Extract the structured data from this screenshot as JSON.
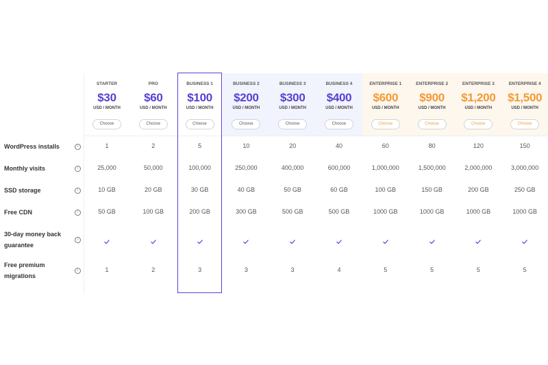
{
  "plans": [
    {
      "name": "STARTER",
      "price": "$30",
      "period": "USD / MONTH",
      "button": "Choose",
      "color": "#5a3fd1",
      "background": "#ffffff"
    },
    {
      "name": "PRO",
      "price": "$60",
      "period": "USD / MONTH",
      "button": "Choose",
      "color": "#5a3fd1",
      "background": "#ffffff"
    },
    {
      "name": "BUSINESS 1",
      "price": "$100",
      "period": "USD / MONTH",
      "button": "Choose",
      "color": "#5a3fd1",
      "background": "#ffffff",
      "highlighted": true
    },
    {
      "name": "BUSINESS 2",
      "price": "$200",
      "period": "USD / MONTH",
      "button": "Choose",
      "color": "#5a3fd1",
      "background": "#f1f4fd"
    },
    {
      "name": "BUSINESS 3",
      "price": "$300",
      "period": "USD / MONTH",
      "button": "Choose",
      "color": "#5a3fd1",
      "background": "#f1f4fd"
    },
    {
      "name": "BUSINESS 4",
      "price": "$400",
      "period": "USD / MONTH",
      "button": "Choose",
      "color": "#5a3fd1",
      "background": "#f1f4fd"
    },
    {
      "name": "ENTERPRISE 1",
      "price": "$600",
      "period": "USD / MONTH",
      "button": "Choose",
      "color": "#f39a33",
      "background": "#fdf7ee"
    },
    {
      "name": "ENTERPRISE 2",
      "price": "$900",
      "period": "USD / MONTH",
      "button": "Choose",
      "color": "#f39a33",
      "background": "#fdf7ee"
    },
    {
      "name": "ENTERPRISE 3",
      "price": "$1,200",
      "period": "USD / MONTH",
      "button": "Choose",
      "color": "#f39a33",
      "background": "#fdf7ee"
    },
    {
      "name": "ENTERPRISE 4",
      "price": "$1,500",
      "period": "USD / MONTH",
      "button": "Choose",
      "color": "#f39a33",
      "background": "#fdf7ee"
    }
  ],
  "features": [
    {
      "label": "WordPress installs",
      "values": [
        "1",
        "2",
        "5",
        "10",
        "20",
        "40",
        "60",
        "80",
        "120",
        "150"
      ]
    },
    {
      "label": "Monthly visits",
      "values": [
        "25,000",
        "50,000",
        "100,000",
        "250,000",
        "400,000",
        "600,000",
        "1,000,000",
        "1,500,000",
        "2,000,000",
        "3,000,000"
      ]
    },
    {
      "label": "SSD storage",
      "values": [
        "10 GB",
        "20 GB",
        "30 GB",
        "40 GB",
        "50 GB",
        "60 GB",
        "100 GB",
        "150 GB",
        "200 GB",
        "250 GB"
      ]
    },
    {
      "label": "Free CDN",
      "values": [
        "50 GB",
        "100 GB",
        "200 GB",
        "300 GB",
        "500 GB",
        "500 GB",
        "1000 GB",
        "1000 GB",
        "1000 GB",
        "1000 GB"
      ]
    },
    {
      "label": "30-day money back guarantee",
      "included": true
    },
    {
      "label": "Free premium migrations",
      "values": [
        "1",
        "2",
        "3",
        "3",
        "3",
        "4",
        "5",
        "5",
        "5",
        "5"
      ]
    }
  ]
}
